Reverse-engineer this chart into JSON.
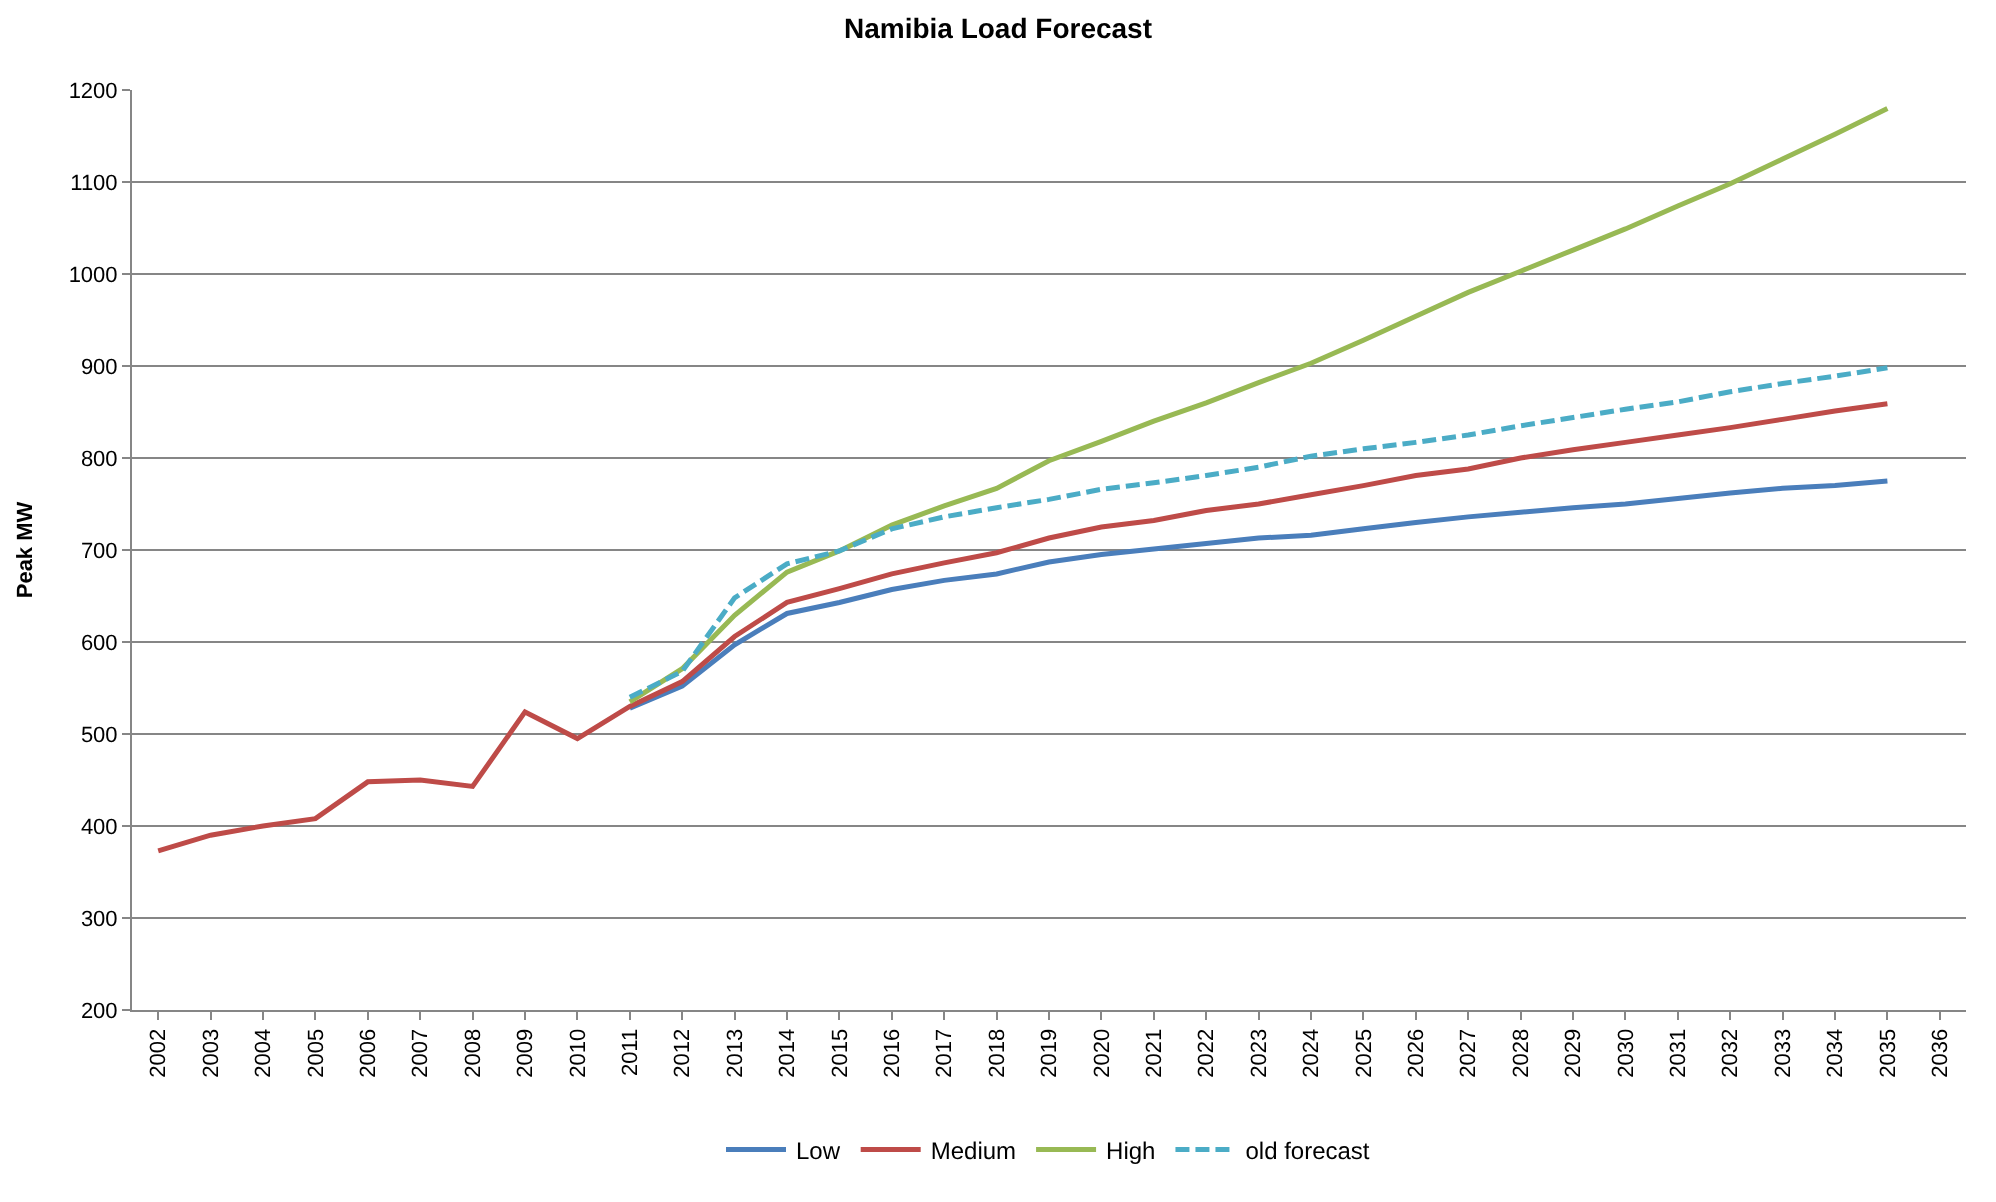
{
  "chart_data": {
    "type": "line",
    "title": "Namibia Load Forecast",
    "ylabel": "Peak MW",
    "xlim": [
      2001.5,
      2036.5
    ],
    "xticks": [
      2002,
      2003,
      2004,
      2005,
      2006,
      2007,
      2008,
      2009,
      2010,
      2011,
      2012,
      2013,
      2014,
      2015,
      2016,
      2017,
      2018,
      2019,
      2020,
      2021,
      2022,
      2023,
      2024,
      2025,
      2026,
      2027,
      2028,
      2029,
      2030,
      2031,
      2032,
      2033,
      2034,
      2035,
      2036
    ],
    "ylim": [
      200,
      1200
    ],
    "yticks": [
      200,
      300,
      400,
      500,
      600,
      700,
      800,
      900,
      1000,
      1100,
      1200
    ],
    "grid": "y",
    "legend": "bottom",
    "marker": "none",
    "series": [
      {
        "name": "Low",
        "color": "#4a7ebb",
        "line_style": "solid",
        "x": [
          2011,
          2012,
          2013,
          2014,
          2015,
          2016,
          2017,
          2018,
          2019,
          2020,
          2021,
          2022,
          2023,
          2024,
          2025,
          2026,
          2027,
          2028,
          2029,
          2030,
          2031,
          2032,
          2033,
          2034,
          2035
        ],
        "values": [
          528,
          552,
          597,
          631,
          643,
          657,
          667,
          674,
          687,
          695,
          701,
          707,
          713,
          716,
          723,
          730,
          736,
          741,
          746,
          750,
          756,
          762,
          767,
          770,
          775
        ]
      },
      {
        "name": "Medium",
        "color": "#be4b48",
        "line_style": "solid",
        "x": [
          2002,
          2003,
          2004,
          2005,
          2006,
          2007,
          2008,
          2009,
          2010,
          2011,
          2012,
          2013,
          2014,
          2015,
          2016,
          2017,
          2018,
          2019,
          2020,
          2021,
          2022,
          2023,
          2024,
          2025,
          2026,
          2027,
          2028,
          2029,
          2030,
          2031,
          2032,
          2033,
          2034,
          2035
        ],
        "values": [
          373,
          390,
          400,
          408,
          448,
          450,
          443,
          524,
          495,
          530,
          557,
          606,
          643,
          658,
          674,
          686,
          697,
          713,
          725,
          732,
          743,
          750,
          760,
          770,
          781,
          788,
          800,
          809,
          817,
          825,
          833,
          842,
          851,
          859
        ]
      },
      {
        "name": "High",
        "color": "#98b954",
        "line_style": "solid",
        "x": [
          2011,
          2012,
          2013,
          2014,
          2015,
          2016,
          2017,
          2018,
          2019,
          2020,
          2021,
          2022,
          2023,
          2024,
          2025,
          2026,
          2027,
          2028,
          2029,
          2030,
          2031,
          2032,
          2033,
          2034,
          2035
        ],
        "values": [
          535,
          571,
          629,
          676,
          699,
          727,
          748,
          767,
          797,
          818,
          840,
          860,
          882,
          903,
          928,
          954,
          980,
          1003,
          1026,
          1049,
          1074,
          1098,
          1125,
          1152,
          1180
        ]
      },
      {
        "name": "old forecast",
        "color": "#4bacc6",
        "line_style": "dashed",
        "x": [
          2011,
          2012,
          2013,
          2014,
          2015,
          2016,
          2017,
          2018,
          2019,
          2020,
          2021,
          2022,
          2023,
          2024,
          2025,
          2026,
          2027,
          2028,
          2029,
          2030,
          2031,
          2032,
          2033,
          2034,
          2035
        ],
        "values": [
          540,
          568,
          648,
          685,
          699,
          723,
          736,
          746,
          755,
          766,
          773,
          781,
          790,
          802,
          810,
          817,
          825,
          835,
          844,
          853,
          861,
          872,
          881,
          889,
          898
        ]
      }
    ]
  }
}
